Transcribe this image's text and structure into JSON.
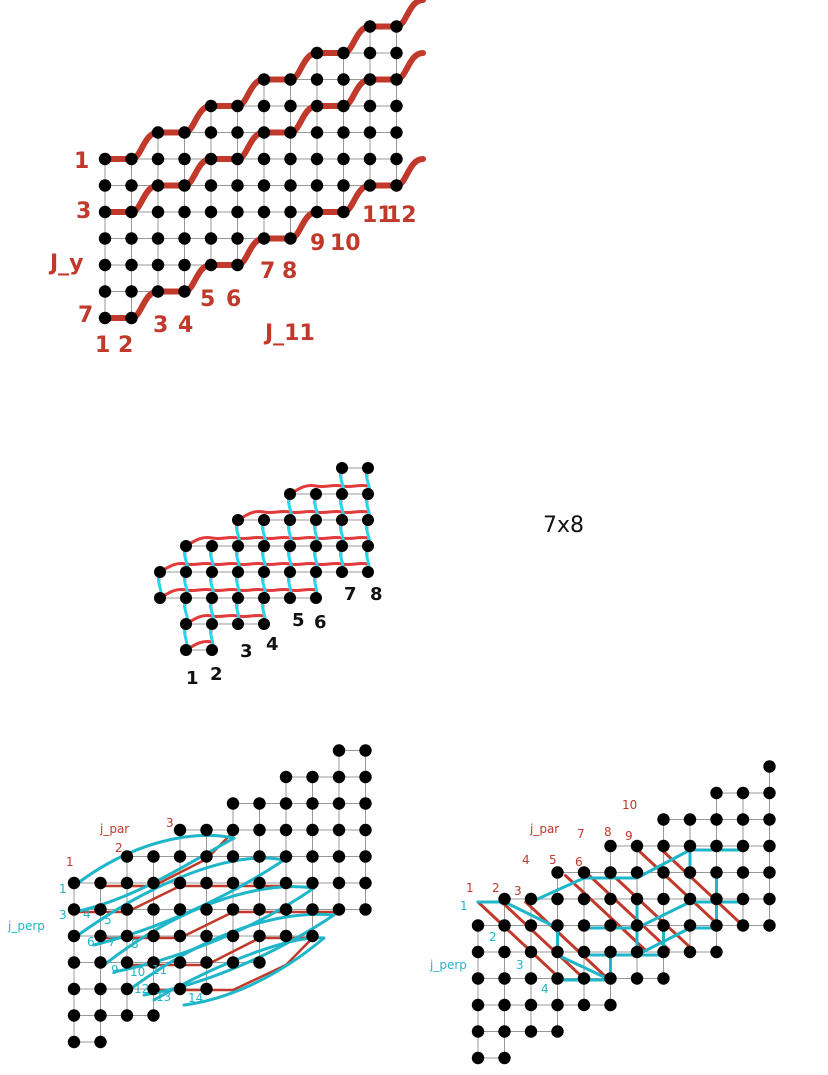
{
  "panel1": {
    "labels_left": [
      "1",
      "3",
      "J_y",
      "7"
    ],
    "labels_bottom": [
      "1",
      "2",
      "3",
      "4",
      "5",
      "6",
      "7",
      "8",
      "9",
      "10",
      "11",
      "12"
    ],
    "label_j11": "J_11"
  },
  "panel2": {
    "size_label": "7x8",
    "labels_bottom": [
      "1",
      "2",
      "3",
      "4",
      "5",
      "6",
      "7",
      "8"
    ]
  },
  "panel3": {
    "j_par": "j_par",
    "j_perp": "j_perp",
    "red_numbers": [
      "1",
      "2",
      "3"
    ],
    "cyan_numbers": [
      "1",
      "3",
      "4",
      "5",
      "6",
      "7",
      "8",
      "9",
      "10",
      "11",
      "12",
      "13",
      "14"
    ]
  },
  "panel4": {
    "j_par": "j_par",
    "j_perp": "j_perp",
    "red_numbers": [
      "1",
      "2",
      "3",
      "4",
      "5",
      "6",
      "7",
      "8",
      "9",
      "10"
    ],
    "cyan_numbers": [
      "1",
      "2",
      "3",
      "4"
    ]
  },
  "colors": {
    "red": "#c0392b",
    "cyan": "#1fb6c9",
    "node": "#000000",
    "grid": "#999999"
  }
}
